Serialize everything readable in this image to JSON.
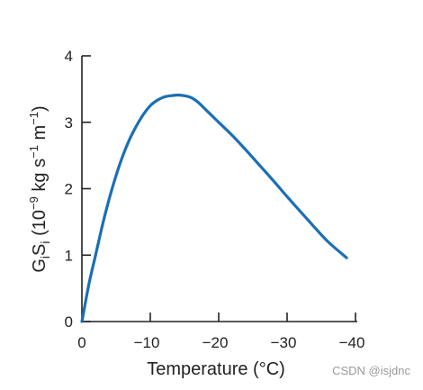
{
  "chart_data": {
    "type": "line",
    "title": "",
    "xlabel": "Temperature (°C)",
    "ylabel": "",
    "xlim": [
      0,
      -40
    ],
    "ylim": [
      0,
      4
    ],
    "x_ticks": [
      0,
      -10,
      -20,
      -30,
      -40
    ],
    "x_tick_labels": [
      "0",
      "−10",
      "−20",
      "−30",
      "−40"
    ],
    "y_ticks": [
      0,
      1,
      2,
      3,
      4
    ],
    "y_tick_labels": [
      "0",
      "1",
      "2",
      "3",
      "4"
    ],
    "grid": false,
    "series": [
      {
        "color": "#1a6fb5",
        "x": [
          0,
          -1,
          -2,
          -3,
          -4,
          -5,
          -6,
          -7,
          -8,
          -9,
          -10,
          -11,
          -12,
          -13,
          -14,
          -15,
          -16,
          -17,
          -18,
          -19,
          -20,
          -22,
          -24,
          -26,
          -28,
          -30,
          -32,
          -34,
          -36,
          -38.7
        ],
        "y": [
          0,
          0.55,
          1.0,
          1.45,
          1.85,
          2.2,
          2.5,
          2.75,
          2.95,
          3.12,
          3.25,
          3.33,
          3.38,
          3.4,
          3.41,
          3.4,
          3.37,
          3.3,
          3.2,
          3.1,
          3.0,
          2.8,
          2.58,
          2.35,
          2.12,
          1.88,
          1.65,
          1.42,
          1.2,
          0.96
        ]
      }
    ]
  },
  "ylabel_parts": {
    "g": "G",
    "i1": "i",
    "s": "S",
    "i2": "i",
    "unit_open": " (10",
    "exp1": "−9",
    "unit_mid": " kg s",
    "exp2": "−1",
    "unit_m": " m",
    "exp3": "−1",
    "unit_close": ")"
  },
  "watermark": "CSDN @isjdnc"
}
